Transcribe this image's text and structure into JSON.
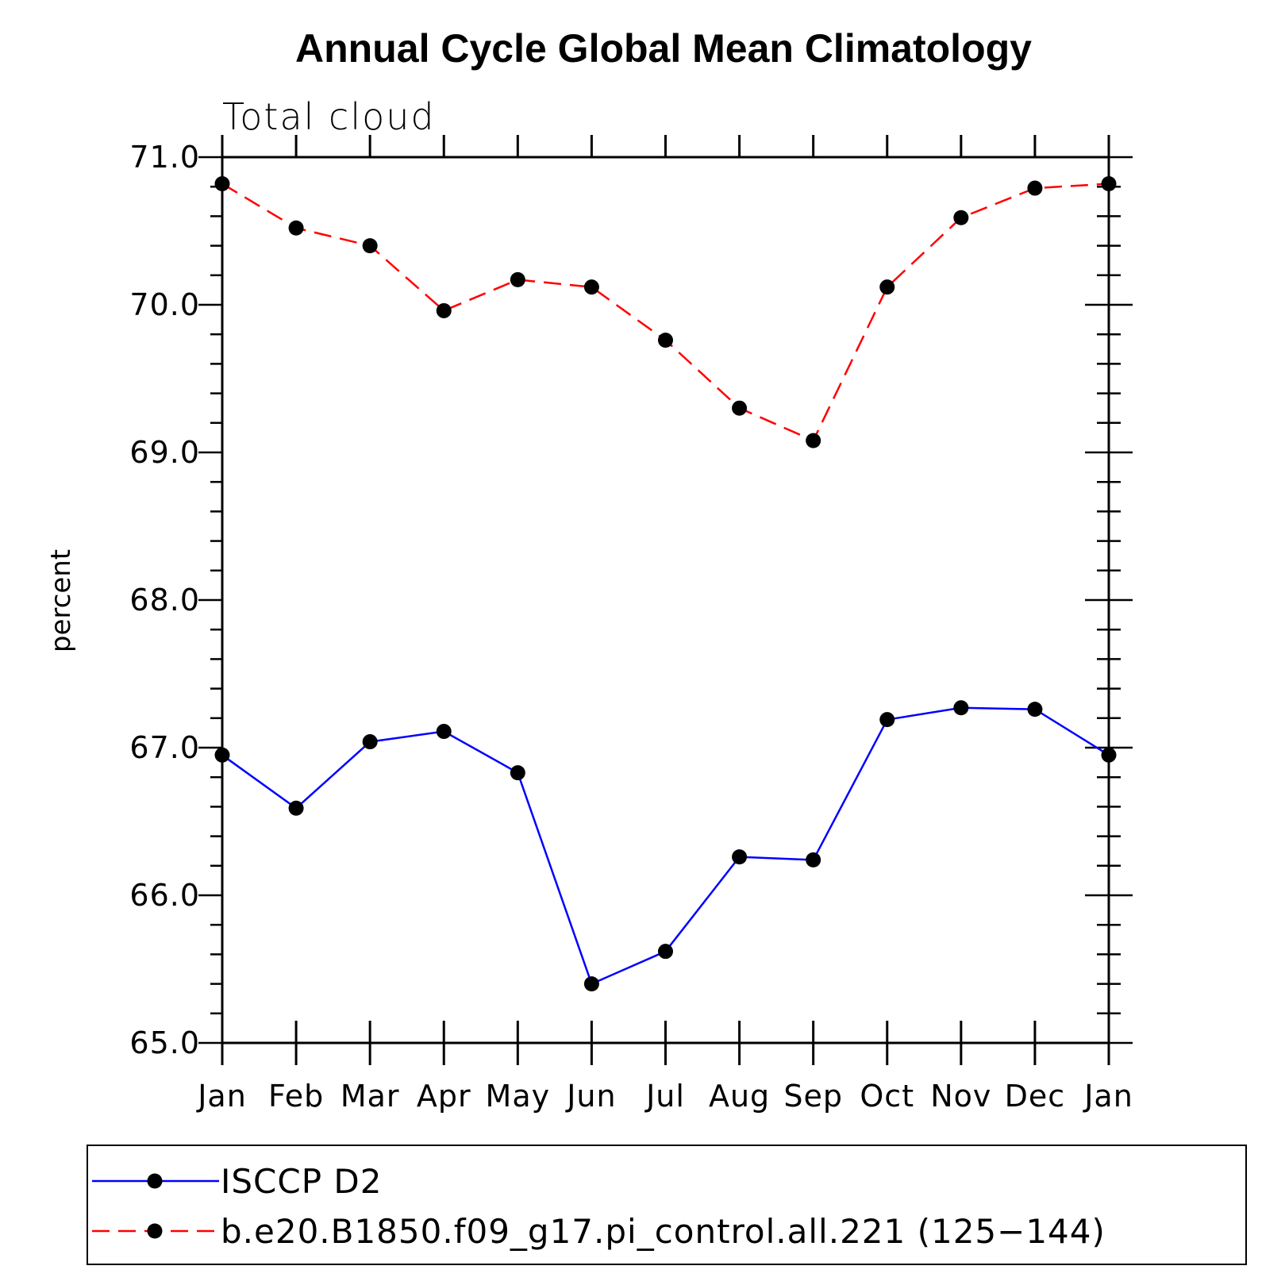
{
  "chart_data": {
    "type": "line",
    "title": "Annual Cycle Global Mean Climatology",
    "subtitle": "Total cloud",
    "ylabel": "percent",
    "xlabel": "",
    "categories": [
      "Jan",
      "Feb",
      "Mar",
      "Apr",
      "May",
      "Jun",
      "Jul",
      "Aug",
      "Sep",
      "Oct",
      "Nov",
      "Dec",
      "Jan"
    ],
    "ylim": [
      65.0,
      71.0
    ],
    "yticks": [
      "65.0",
      "66.0",
      "67.0",
      "68.0",
      "69.0",
      "70.0",
      "71.0"
    ],
    "grid": false,
    "legend_position": "bottom",
    "series": [
      {
        "name": "ISCCP D2",
        "color": "#0000ff",
        "dash": "solid",
        "marker": "filled-circle",
        "values": [
          66.95,
          66.59,
          67.04,
          67.11,
          66.83,
          65.4,
          65.62,
          66.26,
          66.24,
          67.19,
          67.27,
          67.26,
          66.95
        ]
      },
      {
        "name": "b.e20.B1850.f09_g17.pi_control.all.221 (125−144)",
        "color": "#ff0000",
        "dash": "dashed",
        "marker": "filled-circle",
        "values": [
          70.82,
          70.52,
          70.4,
          69.96,
          70.17,
          70.12,
          69.76,
          69.3,
          69.08,
          70.12,
          70.59,
          70.79,
          70.82
        ]
      }
    ]
  }
}
